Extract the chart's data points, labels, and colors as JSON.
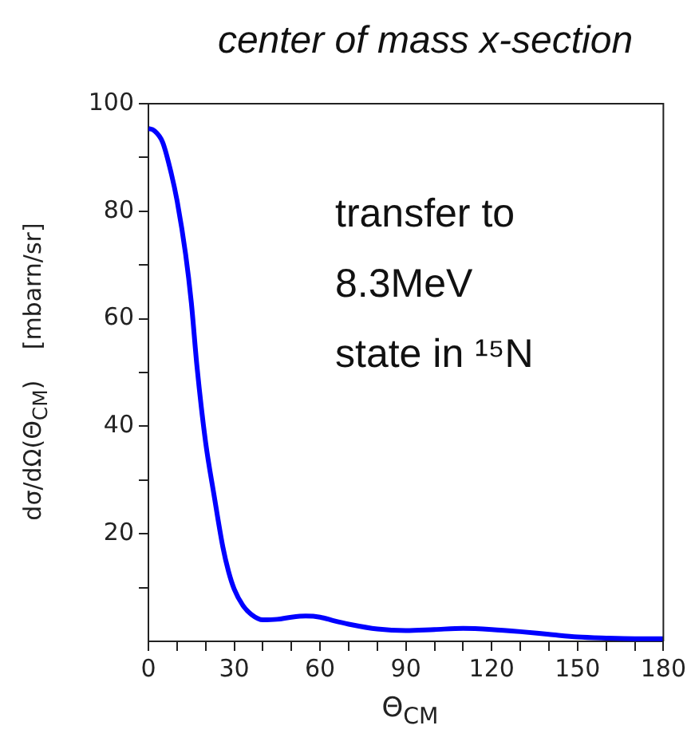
{
  "chart_data": {
    "type": "line",
    "title": "center of mass x-section",
    "xlabel": "Θ$_{CM}$",
    "ylabel": "dσ/dΩ(Θ$_{CM}$)    [mbarn/sr]",
    "annotations": [
      "transfer to\n8.3MeV\nstate in ¹⁵N"
    ],
    "x": [
      0,
      2,
      5,
      8,
      10,
      13,
      15,
      17,
      20,
      23,
      26,
      28,
      30,
      33,
      36,
      40,
      45,
      50,
      55,
      60,
      65,
      70,
      80,
      90,
      100,
      110,
      120,
      130,
      140,
      150,
      160,
      170,
      180
    ],
    "series": [
      {
        "color": "#0000ff",
        "values": [
          95.4,
          95,
          92.8,
          87,
          82,
          72,
          63,
          51,
          37,
          27,
          17.6,
          13,
          9.7,
          6.7,
          5,
          4,
          4.1,
          4.5,
          4.7,
          4.5,
          3.8,
          3.2,
          2.3,
          2,
          2.2,
          2.4,
          2.2,
          1.8,
          1.3,
          0.8,
          0.6,
          0.5,
          0.5
        ]
      }
    ],
    "xlim": [
      0,
      180
    ],
    "xticks": [
      0,
      {
        "value": 10,
        "label": null
      },
      {
        "value": 20,
        "label": null
      },
      30,
      {
        "value": 40,
        "label": null
      },
      {
        "value": 50,
        "label": null
      },
      60,
      {
        "value": 70,
        "label": null
      },
      {
        "value": 80,
        "label": null
      },
      90,
      {
        "value": 100,
        "label": null
      },
      {
        "value": 110,
        "label": null
      },
      120,
      {
        "value": 130,
        "label": null
      },
      {
        "value": 140,
        "label": null
      },
      150,
      {
        "value": 160,
        "label": null
      },
      {
        "value": 170,
        "label": null
      },
      180
    ],
    "ylim": [
      0,
      100
    ],
    "yticks": [
      {
        "value": 10,
        "label": null
      },
      20,
      {
        "value": 30,
        "label": null
      },
      40,
      {
        "value": 50,
        "label": null
      },
      60,
      {
        "value": 70,
        "label": null
      },
      80,
      {
        "value": 90,
        "label": null
      },
      100
    ],
    "grid": false,
    "legend": false,
    "marker": "none",
    "line_style": "solid"
  }
}
